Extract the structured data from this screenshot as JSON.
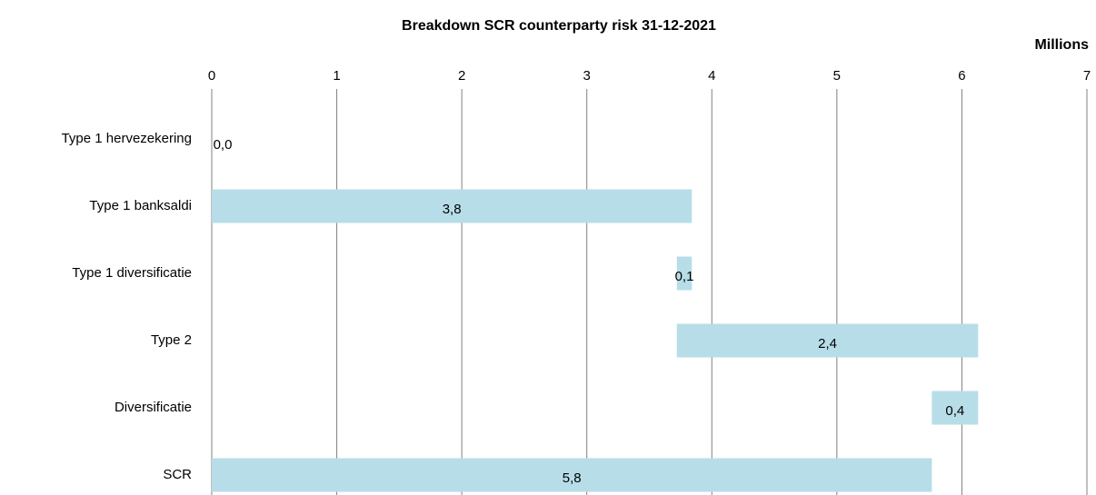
{
  "chart_data": {
    "type": "waterfall",
    "title": "Breakdown SCR counterparty risk 31-12-2021",
    "axis_label": "Millions",
    "categories": [
      "Type 1 hervezekering",
      "Type 1 banksaldi",
      "Type 1 diversificatie",
      "Type 2",
      "Diversificatie",
      "SCR"
    ],
    "values": [
      0.0,
      3.84,
      0.12,
      2.41,
      0.37,
      5.76
    ],
    "value_labels": [
      "0,0",
      "3,8",
      "0,1",
      "2,4",
      "0,4",
      "5,8"
    ],
    "measure": [
      "increase",
      "increase",
      "decrease",
      "increase",
      "decrease",
      "total"
    ],
    "color": "#b7dde8",
    "xlim": [
      0,
      7
    ],
    "xticks": [
      0,
      1,
      2,
      3,
      4,
      5,
      6,
      7
    ],
    "grid": true
  }
}
